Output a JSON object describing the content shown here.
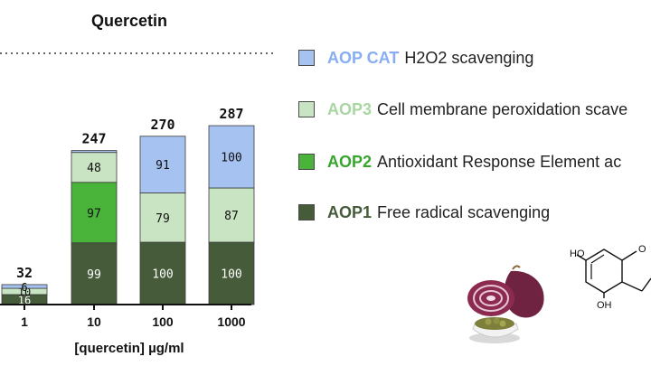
{
  "chart_data": {
    "type": "bar",
    "stacked": true,
    "title": "Quercetin",
    "xlabel": "[quercetin] µg/ml",
    "ylabel": "",
    "categories": [
      "1",
      "10",
      "100",
      "1000"
    ],
    "totals": [
      32,
      247,
      270,
      287
    ],
    "ylim": [
      0,
      300
    ],
    "series": [
      {
        "name": "AOP1 Free radical scavenging",
        "color": "#455b3a",
        "values": [
          16,
          99,
          100,
          100
        ]
      },
      {
        "name": "AOP2 Antioxidant Response Element ac",
        "color": "#49b33a",
        "values": [
          0,
          97,
          0,
          0
        ]
      },
      {
        "name": "AOP3 Cell membrane peroxidation scave",
        "color": "#c9e4c3",
        "values": [
          10,
          48,
          79,
          87
        ]
      },
      {
        "name": "AOP CAT H2O2 scavenging",
        "color": "#a5c2f1",
        "values": [
          6,
          3,
          91,
          100
        ]
      }
    ],
    "grid": false,
    "legend_position": "right"
  },
  "legend": [
    {
      "code": "AOP CAT",
      "text": "H2O2 scavenging",
      "swatch": "#a5c2f1",
      "code_color": "#86aef0"
    },
    {
      "code": "AOP3",
      "text": "Cell membrane peroxidation scave",
      "swatch": "#c9e4c3",
      "code_color": "#a9d6a2"
    },
    {
      "code": "AOP2",
      "text": "Antioxidant Response Element ac",
      "swatch": "#49b33a",
      "code_color": "#38a62e"
    },
    {
      "code": "AOP1",
      "text": "Free radical scavenging",
      "swatch": "#455b3a",
      "code_color": "#455b3a"
    }
  ],
  "molecule_labels": [
    "HO",
    "O",
    "OH"
  ]
}
